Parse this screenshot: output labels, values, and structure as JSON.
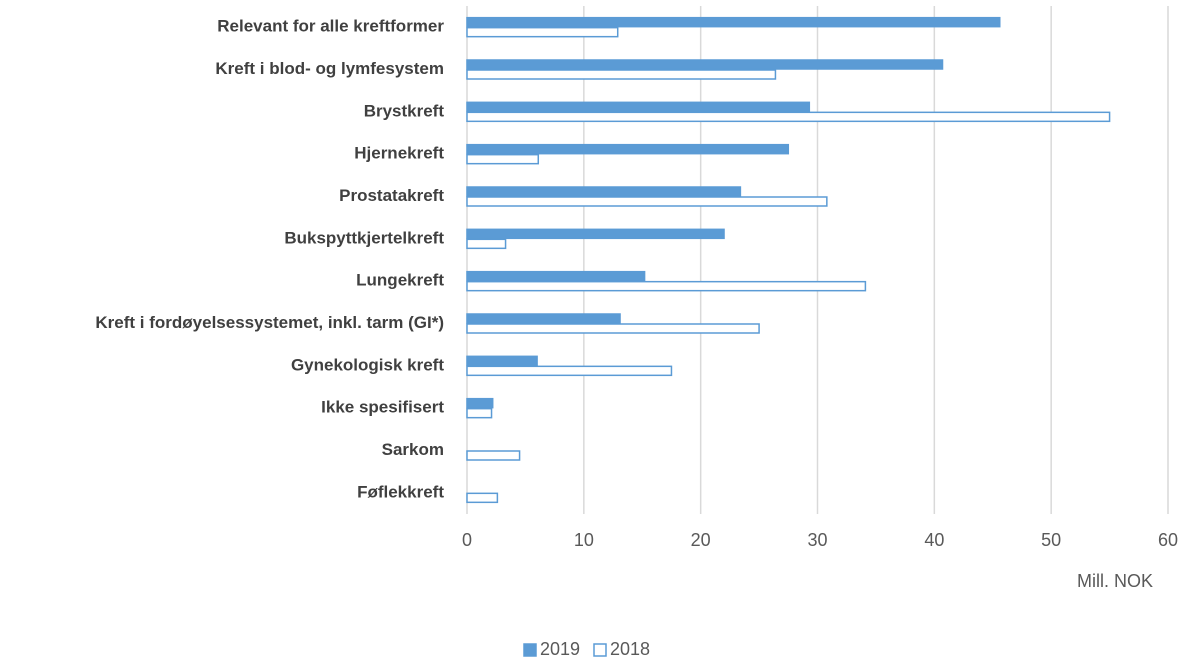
{
  "chart_data": {
    "type": "hbar",
    "categories": [
      "Relevant for alle kreftformer",
      "Kreft i blod- og lymfesystem",
      "Brystkreft",
      "Hjernekreft",
      "Prostatakreft",
      "Bukspyttkjertelkreft",
      "Lungekreft",
      "Kreft i fordøyelsessystemet, inkl. tarm (GI*)",
      "Gynekologisk kreft",
      "Ikke spesifisert",
      "Sarkom",
      "Føflekkreft"
    ],
    "series": [
      {
        "name": "2019",
        "color": "#5b9bd5",
        "fill": "#5b9bd5",
        "values": [
          45.6,
          40.7,
          29.3,
          27.5,
          23.4,
          22.0,
          15.2,
          13.1,
          6.0,
          2.2,
          0,
          0
        ]
      },
      {
        "name": "2018",
        "color": "#5b9bd5",
        "fill": "#ffffff",
        "values": [
          12.9,
          26.4,
          55.0,
          6.1,
          30.8,
          3.3,
          34.1,
          25.0,
          17.5,
          2.1,
          4.5,
          2.6
        ]
      }
    ],
    "xlabel": "Mill. NOK",
    "xlim": [
      0,
      60
    ],
    "xticks": [
      0,
      10,
      20,
      30,
      40,
      50,
      60
    ],
    "grid": true,
    "legend": "bottom"
  }
}
